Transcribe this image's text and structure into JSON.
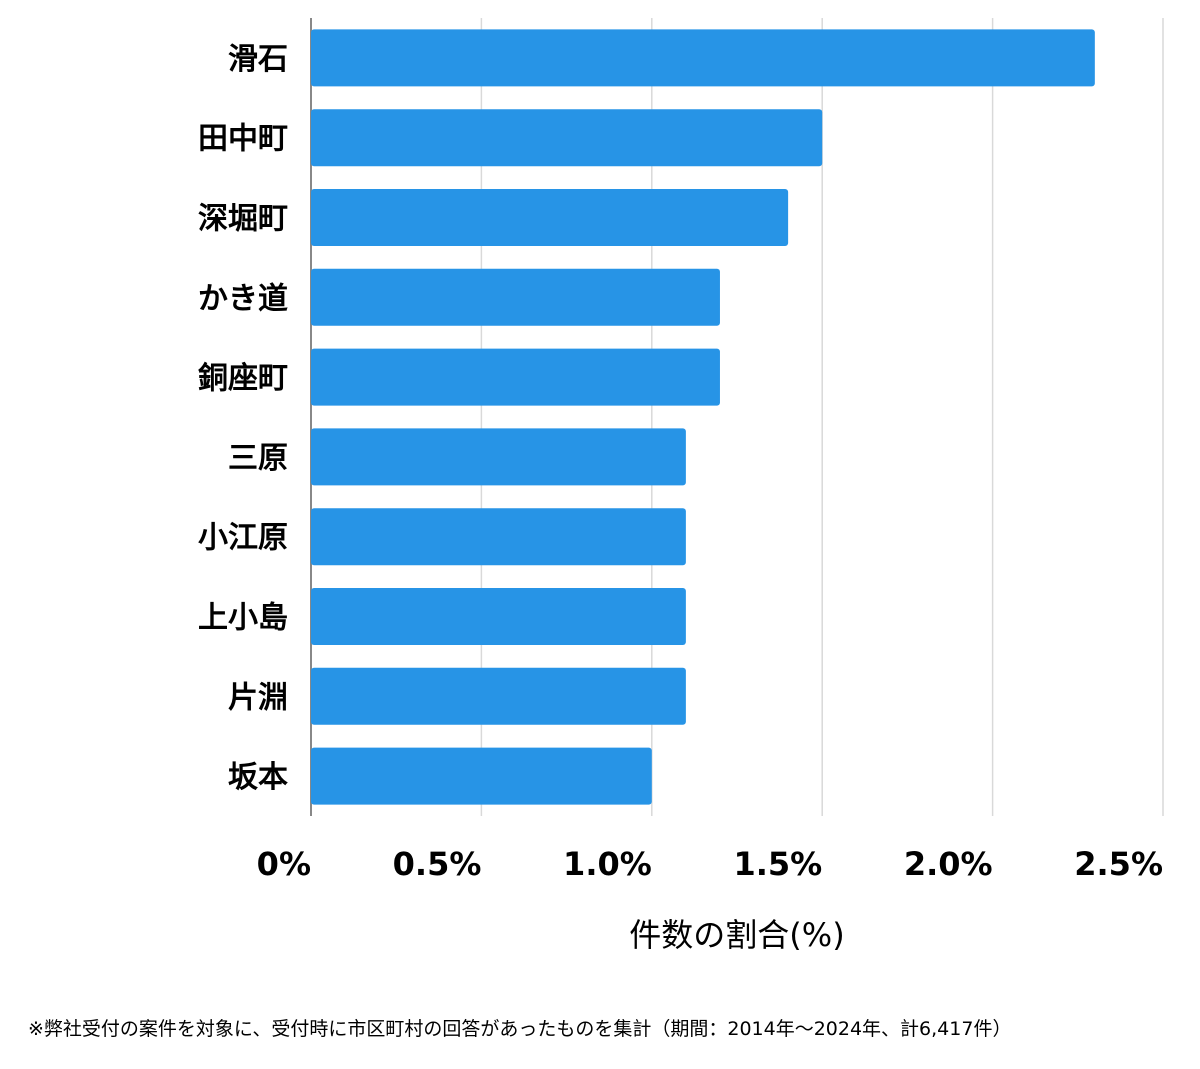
{
  "chart_data": {
    "type": "bar",
    "orientation": "horizontal",
    "categories": [
      "滑石",
      "田中町",
      "深堀町",
      "かき道",
      "銅座町",
      "三原",
      "小江原",
      "上小島",
      "片淵",
      "坂本"
    ],
    "values": [
      2.3,
      1.5,
      1.4,
      1.2,
      1.2,
      1.1,
      1.1,
      1.1,
      1.1,
      1.0
    ],
    "xlim": [
      0,
      2.5
    ],
    "ticks": [
      0,
      0.5,
      1.0,
      1.5,
      2.0,
      2.5
    ],
    "tick_labels": [
      "0%",
      "0.5%",
      "1.0%",
      "1.5%",
      "2.0%",
      "2.5%"
    ],
    "xlabel": "件数の割合(%)",
    "ylabel": "",
    "title": "",
    "grid": true,
    "bar_color": "#2794e6",
    "grid_color": "#d9d9d9"
  },
  "footnote": "※弊社受付の案件を対象に、受付時に市区町村の回答があったものを集計（期間：2014年〜2024年、計6,417件）"
}
